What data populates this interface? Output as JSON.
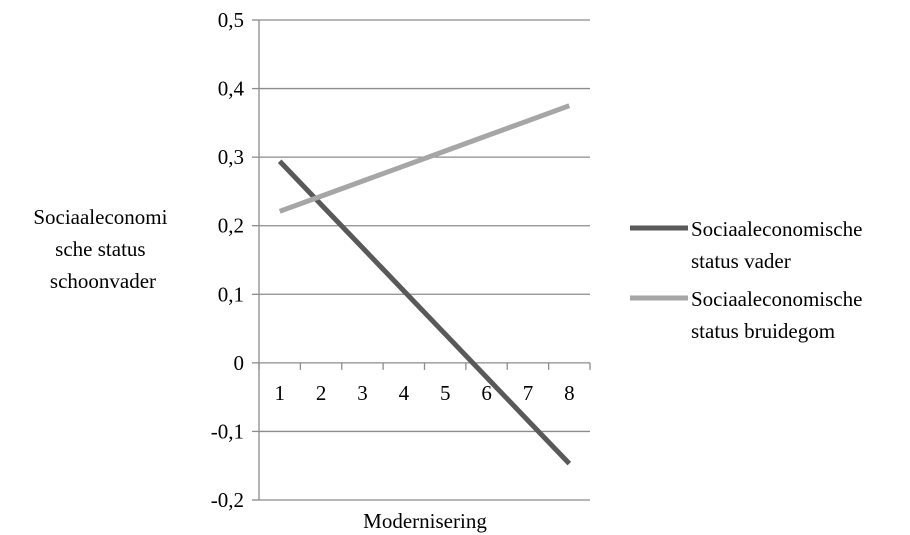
{
  "chart_data": {
    "type": "line",
    "title": "",
    "xlabel": "Modernisering",
    "ylabel_lines": [
      "Sociaaleconomi",
      "sche status",
      "schoonvader"
    ],
    "x": [
      1,
      2,
      3,
      4,
      5,
      6,
      7,
      8
    ],
    "x_tick_labels": [
      "1",
      "2",
      "3",
      "4",
      "5",
      "6",
      "7",
      "8"
    ],
    "ylim": [
      -0.2,
      0.5
    ],
    "y_ticks": [
      0.5,
      0.4,
      0.3,
      0.2,
      0.1,
      0,
      -0.1,
      -0.2
    ],
    "y_tick_labels": [
      "0,5",
      "0,4",
      "0,3",
      "0,2",
      "0,1",
      "0",
      "-0,1",
      "-0,2"
    ],
    "grid": true,
    "legend_position": "right",
    "series": [
      {
        "name_lines": [
          "Sociaaleconomische",
          "status vader"
        ],
        "color": "#595959",
        "values": [
          0.294,
          0.231,
          0.168,
          0.105,
          0.042,
          -0.021,
          -0.084,
          -0.147
        ]
      },
      {
        "name_lines": [
          "Sociaaleconomische",
          "status bruidegom"
        ],
        "color": "#a6a6a6",
        "values": [
          0.221,
          0.243,
          0.265,
          0.287,
          0.309,
          0.331,
          0.353,
          0.375
        ]
      }
    ]
  }
}
